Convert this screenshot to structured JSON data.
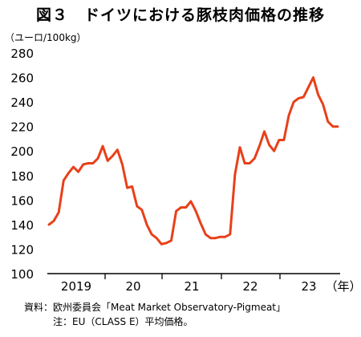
{
  "title": "図３　ドイツにおける豚枝肉価格の推移",
  "chart_data": {
    "type": "line",
    "unit_label": "（ユーロ/100kg）",
    "ylim": [
      100,
      280
    ],
    "yticks": [
      100,
      120,
      140,
      160,
      180,
      200,
      220,
      240,
      260,
      280
    ],
    "x_tick_labels": [
      "2019",
      "20",
      "21",
      "22",
      "23",
      "（年）"
    ],
    "grid": false,
    "series_color": "#e8401a",
    "series": [
      {
        "values": [
          140,
          143,
          150,
          176,
          182,
          187,
          183,
          189,
          190,
          190,
          194,
          204,
          192,
          196,
          201,
          189,
          170,
          171,
          155,
          152,
          140,
          132,
          129,
          124,
          125,
          127,
          151,
          154,
          154,
          159,
          151,
          141,
          132,
          129,
          129,
          130,
          130,
          132,
          181,
          203,
          190,
          190,
          194,
          204,
          216,
          205,
          200,
          209,
          209,
          229,
          240,
          243,
          244,
          252,
          260,
          246,
          238,
          224,
          220,
          220
        ]
      }
    ]
  },
  "notes": {
    "source": "資料：欧州委員会「Meat Market Observatory-Pigmeat」",
    "note": "注：EU（CLASS E）平均価格。"
  }
}
